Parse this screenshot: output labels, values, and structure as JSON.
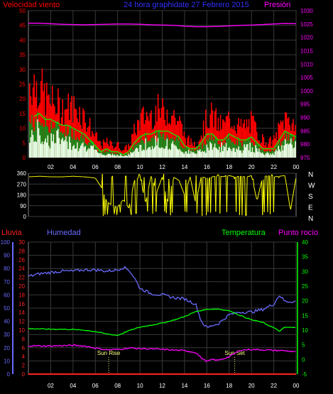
{
  "header": {
    "left_title": "Velocidad viento",
    "center_title": "24 hora graphidate   27 Febrero 2015",
    "right_title": "Presión"
  },
  "colors": {
    "wind_gust": "#ff0000",
    "wind_speed": "#00ff00",
    "wind_base": "#e8ffe8",
    "pressure": "#ff00ff",
    "direction": "#ffff00",
    "humidity": "#6a6aff",
    "temperature": "#00ff00",
    "dew_point": "#ff00ff",
    "rain": "#ff2020",
    "sun_marker": "#ffff80"
  },
  "chart_data": [
    {
      "type": "area",
      "name": "wind_pressure",
      "x_ticks": [
        "02",
        "04",
        "06",
        "08",
        "10",
        "12",
        "14",
        "16",
        "18",
        "20",
        "22",
        "00"
      ],
      "left_axis": {
        "ticks": [
          0,
          5,
          10,
          15,
          20,
          25,
          30,
          35,
          40,
          45,
          50
        ],
        "ylim": [
          0,
          50
        ]
      },
      "right_axis": {
        "ticks": [
          975,
          980,
          985,
          990,
          995,
          1000,
          1005,
          1010,
          1015,
          1020,
          1025,
          1030
        ],
        "ylim": [
          975,
          1030
        ]
      },
      "series": [
        {
          "name": "Gust",
          "x": [
            0.5,
            1,
            1.5,
            2,
            2.5,
            3,
            3.5,
            4,
            4.5,
            5,
            5.5,
            6,
            6.5,
            7,
            7.5,
            8,
            8.5,
            9,
            9.5,
            10,
            10.5,
            11,
            11.5,
            12,
            12.5,
            13,
            13.5,
            14,
            14.5,
            15,
            15.5,
            16,
            16.5,
            17,
            17.5,
            18,
            18.5,
            19,
            19.5,
            20,
            20.5,
            21,
            21.5,
            22,
            22.5,
            23,
            23.5,
            24
          ],
          "values": [
            30,
            28,
            24,
            22,
            21,
            20,
            20,
            20,
            19,
            16,
            12,
            8,
            5,
            6,
            5,
            5,
            3,
            5,
            11,
            15,
            17,
            17,
            19,
            18,
            19,
            17,
            14,
            8,
            6,
            6,
            10,
            16,
            17,
            13,
            13,
            16,
            14,
            12,
            13,
            14,
            10,
            7,
            6,
            7,
            12,
            16,
            15,
            13
          ]
        },
        {
          "name": "Speed",
          "x": [
            0.5,
            1,
            1.5,
            2,
            2.5,
            3,
            3.5,
            4,
            4.5,
            5,
            5.5,
            6,
            6.5,
            7,
            7.5,
            8,
            8.5,
            9,
            9.5,
            10,
            10.5,
            11,
            11.5,
            12,
            12.5,
            13,
            13.5,
            14,
            14.5,
            15,
            15.5,
            16,
            16.5,
            17,
            17.5,
            18,
            18.5,
            19,
            19.5,
            20,
            20.5,
            21,
            21.5,
            22,
            22.5,
            23,
            23.5,
            24
          ],
          "values": [
            14,
            15,
            13,
            13,
            12,
            11,
            11,
            10,
            9,
            8,
            6,
            4,
            2,
            3,
            2,
            2,
            1,
            2,
            5,
            7,
            8,
            8,
            9,
            9,
            9,
            8,
            7,
            4,
            3,
            3,
            5,
            8,
            8,
            6,
            6,
            8,
            7,
            6,
            6,
            7,
            5,
            3,
            3,
            3,
            6,
            9,
            8,
            7
          ]
        },
        {
          "name": "Pressure",
          "x": [
            0,
            1,
            2,
            3,
            4,
            5,
            6,
            7,
            8,
            9,
            10,
            11,
            12,
            13,
            14,
            15,
            16,
            17,
            18,
            19,
            20,
            21,
            22,
            23,
            24
          ],
          "values": [
            1025.3,
            1025.3,
            1025.1,
            1024.9,
            1024.8,
            1024.7,
            1024.8,
            1024.9,
            1025.0,
            1025.0,
            1024.9,
            1024.7,
            1024.6,
            1024.5,
            1024.2,
            1024.0,
            1024.0,
            1024.1,
            1024.3,
            1024.5,
            1024.6,
            1024.8,
            1025.0,
            1025.2,
            1025.1
          ]
        }
      ]
    },
    {
      "type": "scatter",
      "name": "wind_direction",
      "y_ticks": [
        0,
        90,
        180,
        270,
        360
      ],
      "ylim": [
        0,
        360
      ],
      "right_labels": [
        "N",
        "W",
        "S",
        "E",
        "N"
      ],
      "series": [
        {
          "name": "Direction",
          "x": [
            0,
            1,
            2,
            3,
            4,
            5,
            6,
            6.5,
            7,
            7.5,
            8,
            8.5,
            9,
            9.5,
            10,
            10.5,
            11,
            11.5,
            12,
            12.5,
            13,
            13.5,
            14,
            14.5,
            15,
            15.5,
            16,
            16.5,
            17,
            17.5,
            18,
            18.5,
            19,
            19.5,
            20,
            20.5,
            21,
            21.5,
            22,
            22.5,
            23,
            23.5,
            24
          ],
          "values": [
            330,
            335,
            330,
            330,
            335,
            330,
            320,
            250,
            130,
            90,
            80,
            140,
            70,
            300,
            330,
            110,
            340,
            200,
            330,
            120,
            330,
            300,
            180,
            330,
            110,
            330,
            320,
            330,
            340,
            330,
            340,
            330,
            335,
            330,
            340,
            130,
            330,
            340,
            330,
            335,
            340,
            50,
            330
          ]
        }
      ]
    },
    {
      "type": "line",
      "name": "climate",
      "x_ticks": [
        "02",
        "04",
        "06",
        "08",
        "10",
        "12",
        "14",
        "16",
        "18",
        "20",
        "22",
        "00"
      ],
      "axis_labels": {
        "rain": "Lluvia",
        "humidity": "Humedad",
        "temperature": "Temperatura",
        "dew_point": "Punto rocío"
      },
      "humidity_axis": {
        "ticks": [
          0,
          10,
          20,
          30,
          40,
          50,
          60,
          70,
          80,
          90,
          100
        ],
        "ylim": [
          0,
          100
        ]
      },
      "rain_axis": {
        "ticks": [
          0,
          2,
          4,
          6,
          8,
          10,
          12,
          14,
          16,
          18,
          20,
          22,
          24,
          26,
          28,
          30
        ],
        "ylim": [
          0,
          30
        ]
      },
      "temperature_axis": {
        "ticks": [
          -5,
          0,
          5,
          10,
          15,
          20,
          25,
          30,
          35,
          40
        ],
        "ylim": [
          -5,
          40
        ]
      },
      "annotations": [
        {
          "label": "Sun Rise",
          "x": 7.2
        },
        {
          "label": "Sun Set",
          "x": 18.5
        }
      ],
      "series": [
        {
          "name": "Humedad",
          "x": [
            0,
            1,
            2,
            3,
            4,
            5,
            6,
            7,
            8,
            8.5,
            9,
            9.5,
            10,
            11,
            12,
            13,
            14,
            15,
            15.5,
            16,
            16.5,
            17,
            18,
            19,
            20,
            21,
            22,
            22.5,
            23,
            24
          ],
          "values": [
            74,
            76,
            77,
            78,
            78,
            79,
            79,
            78,
            79,
            81,
            79,
            73,
            65,
            61,
            60,
            58,
            57,
            53,
            40,
            35,
            37,
            38,
            45,
            47,
            47,
            49,
            53,
            60,
            55,
            55
          ]
        },
        {
          "name": "Temperatura",
          "x": [
            0,
            1,
            2,
            3,
            4,
            5,
            6,
            7,
            8,
            9,
            10,
            11,
            12,
            13,
            14,
            15,
            16,
            17,
            18,
            19,
            20,
            21,
            22,
            22.5,
            23,
            24
          ],
          "values": [
            10.5,
            10.4,
            10.3,
            10.3,
            10.2,
            10.0,
            9.5,
            8.7,
            8.2,
            9.8,
            11.0,
            11.7,
            12.4,
            13.4,
            14.6,
            16.3,
            17.1,
            17.2,
            16.6,
            15.0,
            13.5,
            12.6,
            10.8,
            9.6,
            11.0,
            10.8
          ]
        },
        {
          "name": "Punto rocío",
          "x": [
            0,
            1,
            2,
            3,
            4,
            5,
            6,
            7,
            8,
            9,
            10,
            11,
            12,
            13,
            14,
            15,
            15.5,
            16,
            16.5,
            17,
            18,
            19,
            20,
            21,
            22,
            23,
            24
          ],
          "values": [
            4.7,
            4.6,
            4.6,
            4.7,
            4.8,
            4.6,
            3.9,
            3.3,
            3.4,
            3.9,
            3.7,
            3.6,
            3.4,
            3.2,
            3.0,
            2.4,
            0.5,
            -0.7,
            0,
            -0.3,
            0.9,
            3.2,
            3.4,
            3.3,
            3.1,
            3.0,
            2.5
          ]
        },
        {
          "name": "Lluvia",
          "x": [
            0,
            24
          ],
          "values": [
            0,
            0
          ]
        }
      ]
    }
  ]
}
